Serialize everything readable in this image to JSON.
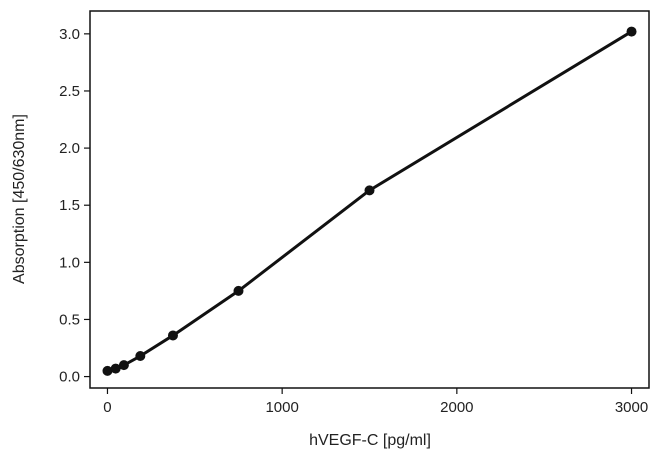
{
  "chart_data": {
    "type": "line",
    "title": "",
    "xlabel": "hVEGF-C [pg/ml]",
    "ylabel": "Absorption [450/630nm]",
    "xlim": [
      -100,
      3100
    ],
    "ylim": [
      -0.1,
      3.2
    ],
    "xticks": [
      0,
      1000,
      2000,
      3000
    ],
    "xtick_labels": [
      "0",
      "1000",
      "2000",
      "3000"
    ],
    "yticks": [
      0.0,
      0.5,
      1.0,
      1.5,
      2.0,
      2.5,
      3.0
    ],
    "ytick_labels": [
      "0.0",
      "0.5",
      "1.0",
      "1.5",
      "2.0",
      "2.5",
      "3.0"
    ],
    "grid": false,
    "legend": "none",
    "series": [
      {
        "x": [
          0,
          47,
          94,
          188,
          375,
          750,
          1500,
          3000
        ],
        "y": [
          0.05,
          0.07,
          0.1,
          0.18,
          0.36,
          0.75,
          1.63,
          3.02
        ],
        "color": "#111111",
        "marker": "circle"
      }
    ]
  }
}
